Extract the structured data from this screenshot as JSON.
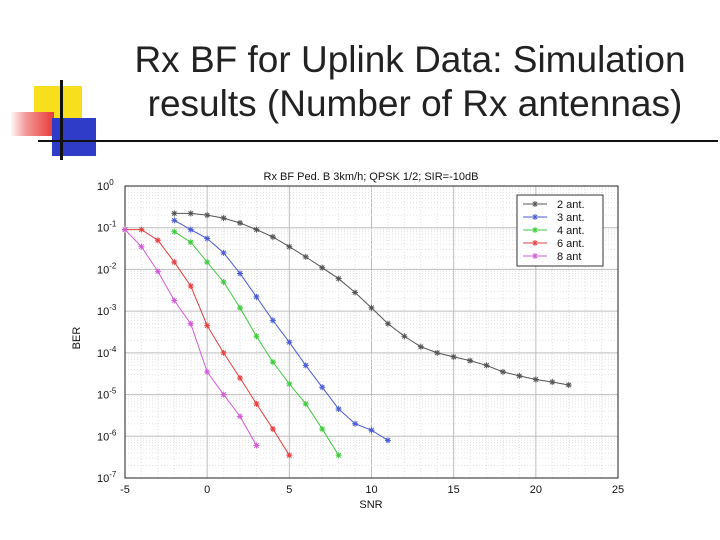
{
  "slide": {
    "title_line1": "Rx BF for Uplink Data: Simulation",
    "title_line2": "results (Number of Rx antennas)"
  },
  "colors": {
    "deco_yellow": "#f7df1e",
    "deco_red": "#e83a3a",
    "deco_blue": "#2f3cc8"
  },
  "chart_data": {
    "type": "line",
    "title": "Rx BF Ped. B 3km/h; QPSK 1/2; SIR=-10dB",
    "xlabel": "SNR",
    "ylabel": "BER",
    "xlim": [
      -5,
      25
    ],
    "ylim": [
      1e-07,
      1
    ],
    "yscale": "log",
    "grid": true,
    "legend_position": "top-right",
    "x_ticks": [
      "-5",
      "0",
      "5",
      "10",
      "15",
      "20",
      "25"
    ],
    "y_ticks": [
      {
        "base": "10",
        "exp": "0"
      },
      {
        "base": "10",
        "exp": "-1"
      },
      {
        "base": "10",
        "exp": "-2"
      },
      {
        "base": "10",
        "exp": "-3"
      },
      {
        "base": "10",
        "exp": "-4"
      },
      {
        "base": "10",
        "exp": "-5"
      },
      {
        "base": "10",
        "exp": "-6"
      },
      {
        "base": "10",
        "exp": "-7"
      }
    ],
    "series": [
      {
        "name": "2 ant.",
        "color": "#555555",
        "x": [
          -2,
          -1,
          0,
          1,
          2,
          3,
          4,
          5,
          6,
          7,
          8,
          9,
          10,
          11,
          12,
          13,
          14,
          15,
          16,
          17,
          18,
          19,
          20,
          21,
          22
        ],
        "y": [
          0.22,
          0.22,
          0.2,
          0.17,
          0.13,
          0.09,
          0.06,
          0.035,
          0.02,
          0.011,
          0.006,
          0.0028,
          0.0012,
          0.0005,
          0.00025,
          0.00014,
          0.0001,
          8e-05,
          6.5e-05,
          5e-05,
          3.5e-05,
          2.8e-05,
          2.3e-05,
          2e-05,
          1.7e-05
        ]
      },
      {
        "name": "3 ant.",
        "color": "#4a5bd6",
        "x": [
          -2,
          -1,
          0,
          1,
          2,
          3,
          4,
          5,
          6,
          7,
          8,
          9,
          10,
          11
        ],
        "y": [
          0.15,
          0.09,
          0.055,
          0.025,
          0.008,
          0.0022,
          0.0006,
          0.00018,
          5e-05,
          1.5e-05,
          4.5e-06,
          2e-06,
          1.4e-06,
          8e-07
        ]
      },
      {
        "name": "4 ant.",
        "color": "#3ecb3e",
        "x": [
          -2,
          -1,
          0,
          1,
          2,
          3,
          4,
          5,
          6,
          7,
          8
        ],
        "y": [
          0.08,
          0.045,
          0.015,
          0.005,
          0.0012,
          0.00025,
          6e-05,
          1.8e-05,
          6e-06,
          1.5e-06,
          3.5e-07
        ]
      },
      {
        "name": "6 ant.",
        "color": "#e84040",
        "x": [
          -5,
          -4,
          -3,
          -2,
          -1,
          0,
          1,
          2,
          3,
          4,
          5
        ],
        "y": [
          0.09,
          0.09,
          0.05,
          0.015,
          0.004,
          0.00045,
          0.0001,
          2.5e-05,
          6e-06,
          1.5e-06,
          3.5e-07
        ]
      },
      {
        "name": "8 ant",
        "color": "#d35ad9",
        "x": [
          -5,
          -4,
          -3,
          -2,
          -1,
          0,
          1,
          2,
          3
        ],
        "y": [
          0.09,
          0.035,
          0.009,
          0.0018,
          0.0005,
          3.5e-05,
          1e-05,
          3e-06,
          6e-07
        ]
      }
    ]
  }
}
